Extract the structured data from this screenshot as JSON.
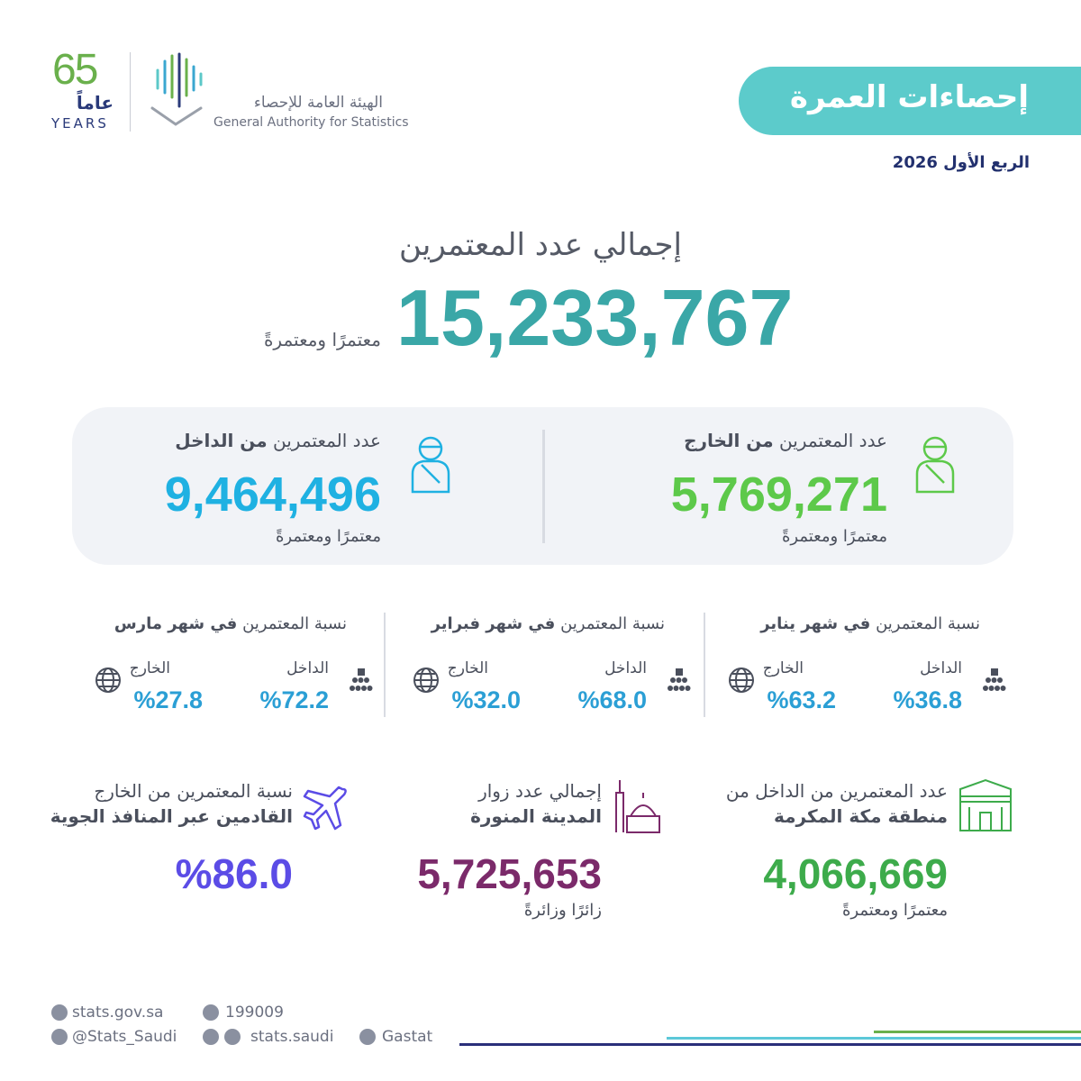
{
  "header": {
    "anniversary": {
      "number": "65",
      "word": "عاماً",
      "years": "YEARS"
    },
    "org_name_ar": "الهيئة العامة للإحصاء",
    "org_name_en": "General Authority for Statistics",
    "title": "إحصاءات العمرة",
    "period": "الربع الأول 2026"
  },
  "total": {
    "label": "إجمالي عدد المعتمرين",
    "value": "15,233,767",
    "unit": "معتمرًا ومعتمرةً"
  },
  "split": [
    {
      "label": "عدد المعتمرين ",
      "label_bold": "من الخارج",
      "value": "5,769,271",
      "unit": "معتمرًا ومعتمرةً"
    },
    {
      "label": "عدد المعتمرين ",
      "label_bold": "من الداخل",
      "value": "9,464,496",
      "unit": "معتمرًا ومعتمرةً"
    }
  ],
  "months": [
    {
      "title": "نسبة المعتمرين ",
      "title_bold": "في شهر يناير",
      "internal_label": "الداخل",
      "internal": "%36.8",
      "external_label": "الخارج",
      "external": "%63.2"
    },
    {
      "title": "نسبة المعتمرين ",
      "title_bold": "في شهر فبراير",
      "internal_label": "الداخل",
      "internal": "%68.0",
      "external_label": "الخارج",
      "external": "%32.0"
    },
    {
      "title": "نسبة المعتمرين ",
      "title_bold": "في شهر مارس",
      "internal_label": "الداخل",
      "internal": "%72.2",
      "external_label": "الخارج",
      "external": "%27.8"
    }
  ],
  "highlights": [
    {
      "line1": "عدد المعتمرين من الداخل من",
      "line2": "منطقة مكة المكرمة",
      "value": "4,066,669",
      "unit": "معتمرًا ومعتمرةً"
    },
    {
      "line1": "إجمالي عدد زوار",
      "line2": "المدينة المنورة",
      "value": "5,725,653",
      "unit": "زائرًا وزائرةً"
    },
    {
      "line1": "نسبة المعتمرين من الخارج",
      "line2": "القادمين عبر المنافذ الجوية",
      "value": "%86.0"
    }
  ],
  "footer": {
    "website": "stats.gov.sa",
    "phone": "199009",
    "twitter": "@Stats_Saudi",
    "social": "stats.saudi",
    "linkedin": "Gastat"
  }
}
